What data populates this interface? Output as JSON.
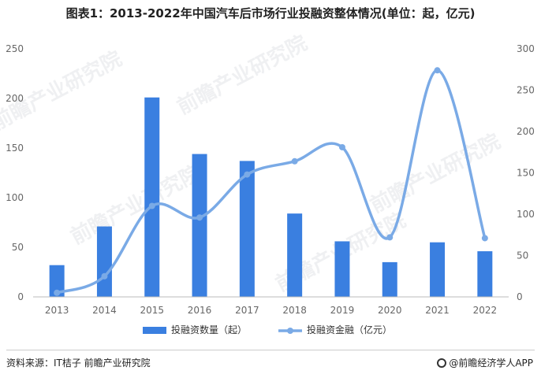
{
  "title": "图表1：2013-2022年中国汽车后市场行业投融资整体情况(单位：起，亿元)",
  "watermark": "前瞻产业研究院",
  "footer": {
    "source": "资料来源：IT桔子 前瞻产业研究院",
    "brand": "@前瞻经济学人APP"
  },
  "colors": {
    "bar": "#3a7fe0",
    "line": "#7aaae6",
    "axis": "#666666"
  },
  "chart_data": {
    "type": "bar",
    "categories": [
      "2013",
      "2014",
      "2015",
      "2016",
      "2017",
      "2018",
      "2019",
      "2020",
      "2021",
      "2022"
    ],
    "series": [
      {
        "name": "投融资数量（起）",
        "type": "bar",
        "axis": "left",
        "values": [
          32,
          71,
          201,
          144,
          137,
          84,
          56,
          35,
          55,
          46
        ]
      },
      {
        "name": "投融资金融（亿元）",
        "type": "line",
        "axis": "right",
        "values": [
          5,
          25,
          110,
          96,
          148,
          164,
          181,
          72,
          274,
          71
        ]
      }
    ],
    "left_axis": {
      "min": 0,
      "max": 250,
      "ticks": [
        0,
        50,
        100,
        150,
        200,
        250
      ]
    },
    "right_axis": {
      "min": 0,
      "max": 300,
      "ticks": [
        0,
        50,
        100,
        150,
        200,
        250,
        300
      ]
    },
    "legend_position": "bottom",
    "grid": false
  }
}
